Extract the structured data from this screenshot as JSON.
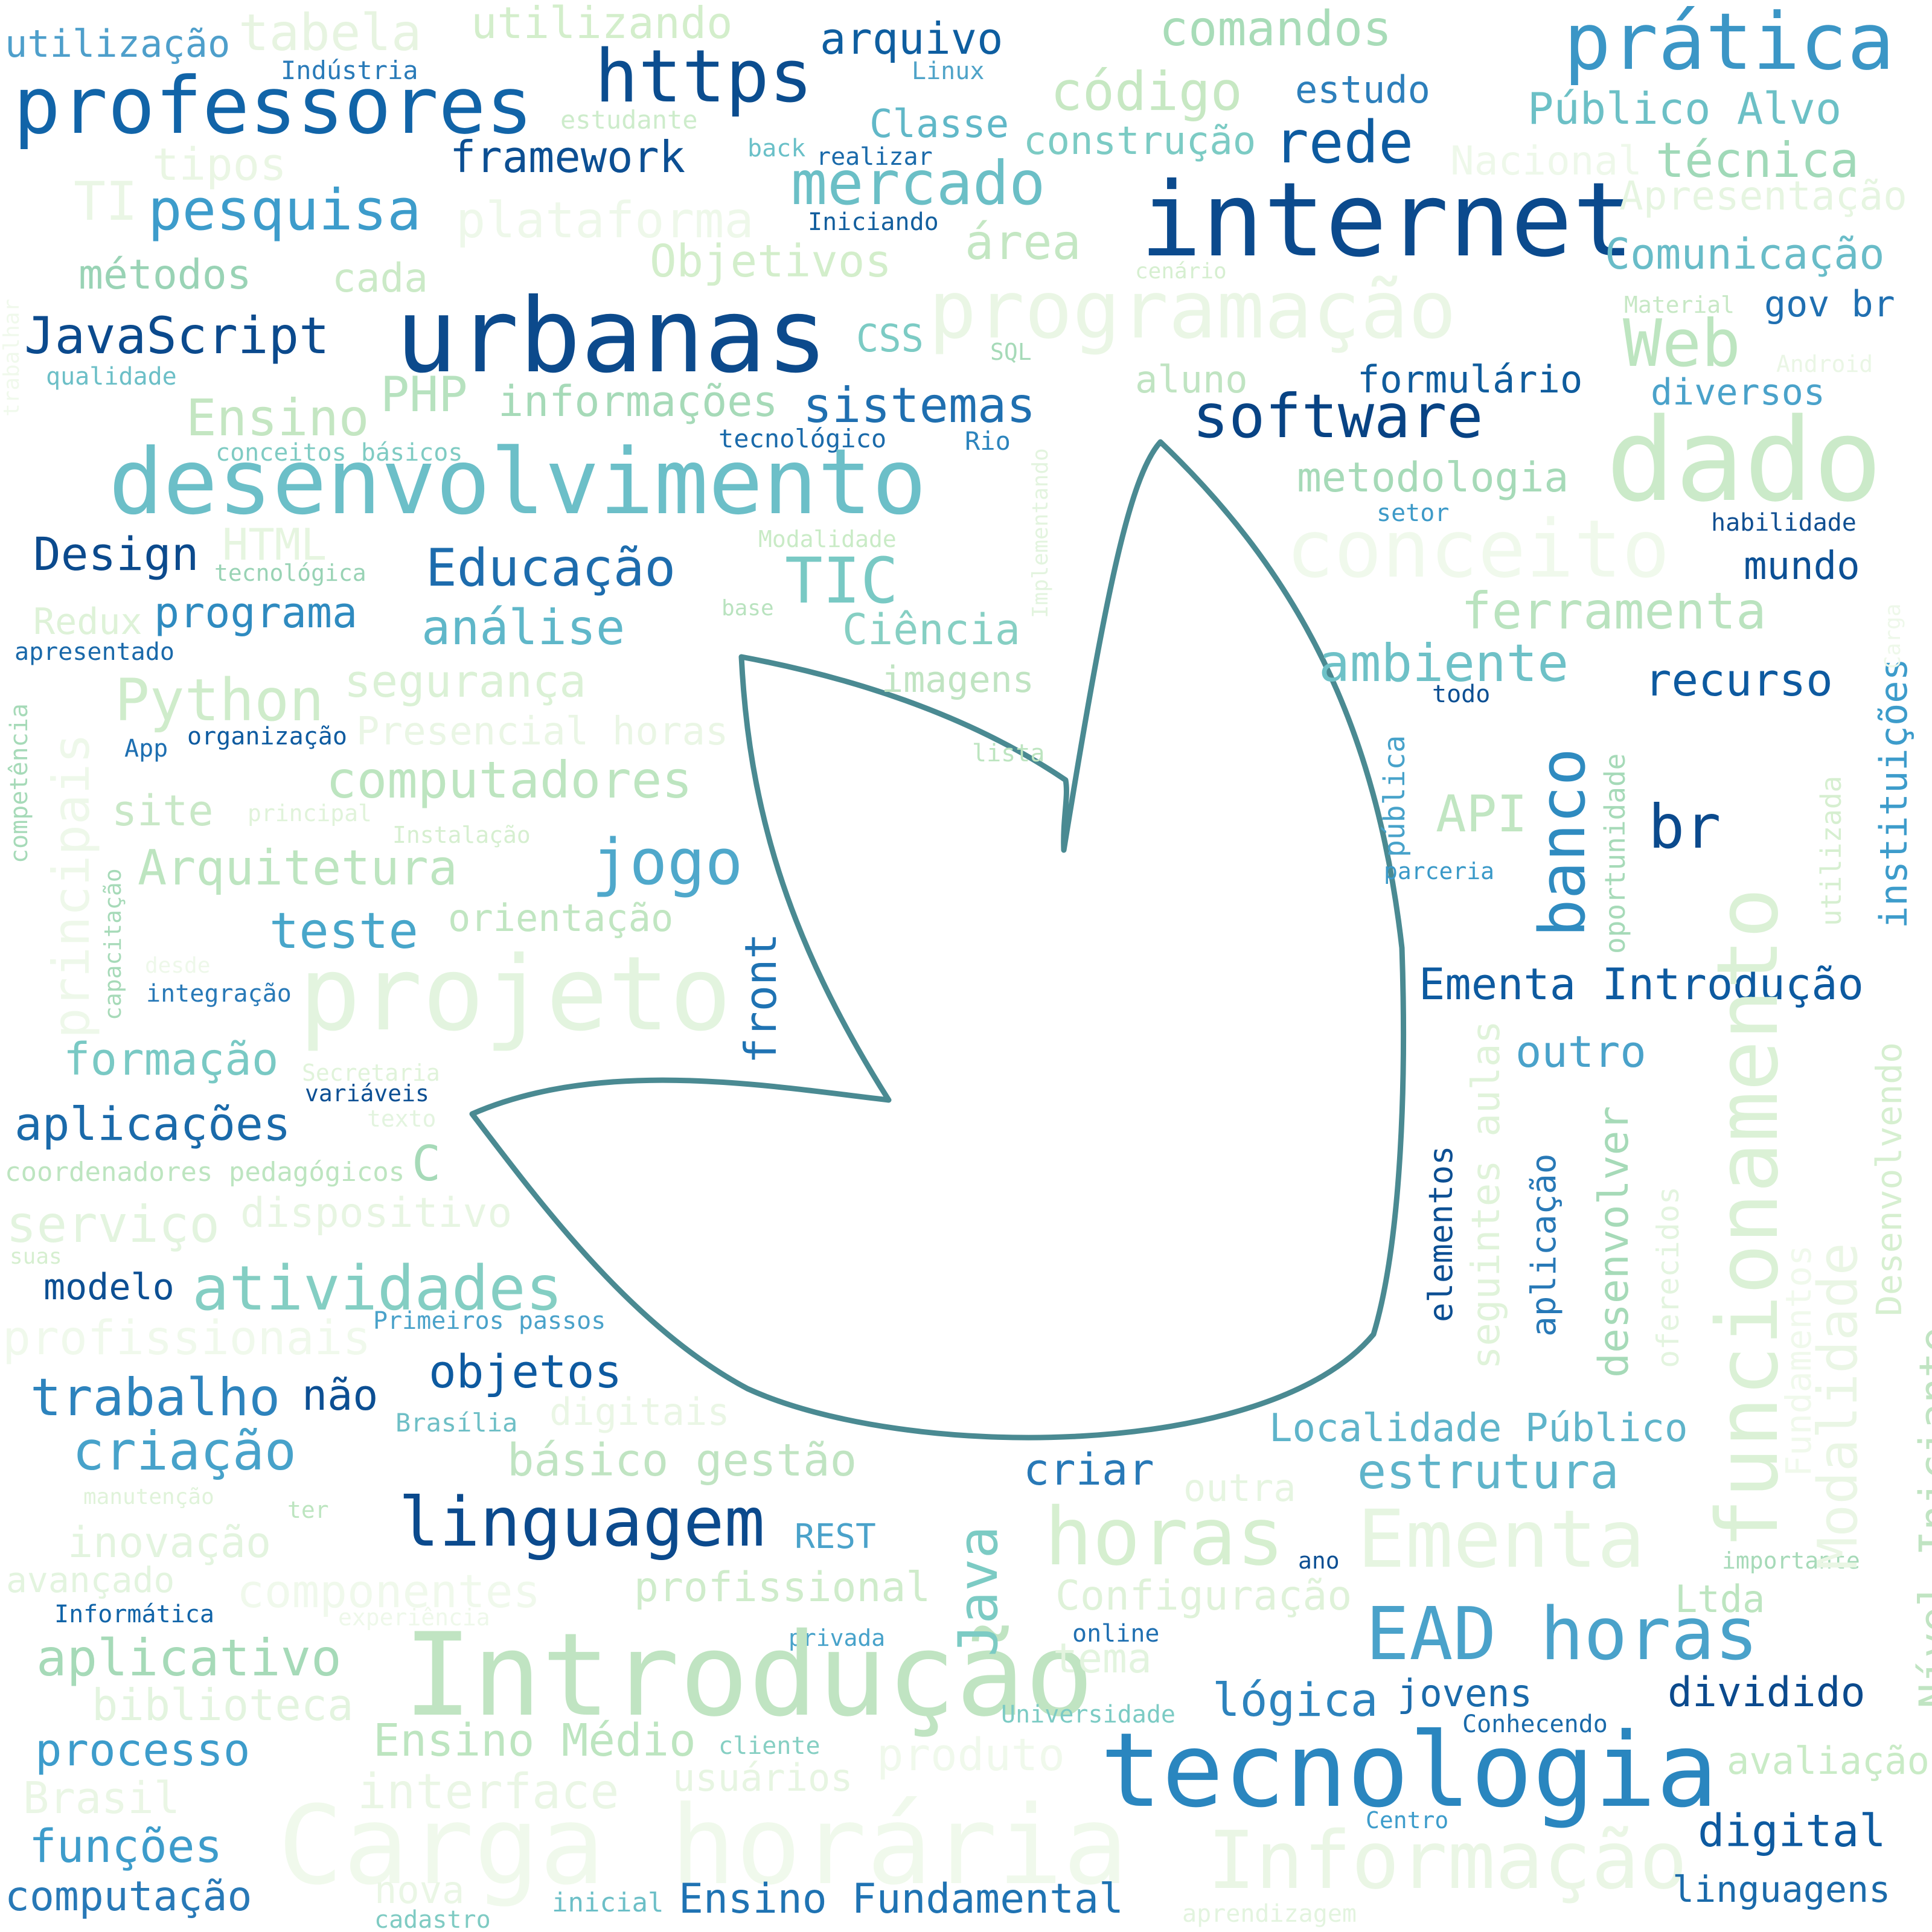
{
  "words": [
    "utilização",
    "tabela",
    "utilizando",
    "arquivo",
    "comandos",
    "prática",
    "Indústria",
    "Linux",
    "professores",
    "https",
    "código",
    "estudo",
    "Público Alvo",
    "estudante",
    "Classe",
    "back",
    "realizar",
    "construção",
    "rede",
    "framework",
    "tipos",
    "Nacional",
    "técnica",
    "mercado",
    "TI",
    "pesquisa",
    "internet",
    "Apresentação",
    "plataforma",
    "Iniciando",
    "Objetivos",
    "área",
    "métodos",
    "cada",
    "cenário",
    "Comunicação",
    "programação",
    "Material",
    "gov br",
    "JavaScript",
    "urbanas",
    "CSS",
    "Web",
    "SQL",
    "Android",
    "qualidade",
    "PHP",
    "informações",
    "sistemas",
    "aluno",
    "formulário",
    "diversos",
    "Ensino",
    "software",
    "conceitos básicos",
    "tecnológico",
    "Rio",
    "dado",
    "desenvolvimento",
    "metodologia",
    "setor",
    "HTML",
    "Modalidade",
    "conceito",
    "habilidade",
    "Design",
    "Educação",
    "TIC",
    "tecnológica",
    "mundo",
    "programa",
    "base",
    "ferramenta",
    "Redux",
    "análise",
    "Ciência",
    "apresentado",
    "ambiente",
    "imagens",
    "segurança",
    "todo",
    "recurso",
    "Python",
    "Presencial horas",
    "App",
    "organização",
    "lista",
    "computadores",
    "API",
    "site",
    "principal",
    "br",
    "jogo",
    "Instalação",
    "parceria",
    "Arquitetura",
    "orientação",
    "teste",
    "desde",
    "integração",
    "projeto",
    "Ementa Introdução",
    "formação",
    "Secretaria",
    "outro",
    "variáveis",
    "texto",
    "aplicações",
    "coordenadores pedagógicos",
    "C",
    "serviço",
    "dispositivo",
    "suas",
    "atividades",
    "modelo",
    "profissionais",
    "Primeiros passos",
    "objetos",
    "trabalho",
    "não",
    "digitais",
    "Brasília",
    "Localidade Público",
    "básico gestão",
    "criação",
    "criar",
    "outra",
    "estrutura",
    "manutenção",
    "ter",
    "linguagem",
    "REST",
    "inovação",
    "horas",
    "Ementa",
    "ano",
    "importante",
    "avançado",
    "componentes",
    "profissional",
    "Configuração",
    "Ltda",
    "Informática",
    "experiência",
    "privada",
    "online",
    "EAD horas",
    "aplicativo",
    "Introdução",
    "tema",
    "lógica",
    "jovens",
    "dividido",
    "biblioteca",
    "Universidade",
    "Conhecendo",
    "Ensino Médio",
    "cliente",
    "processo",
    "produto",
    "avaliação",
    "tecnologia",
    "interface",
    "usuários",
    "Brasil",
    "Centro",
    "digital",
    "funções",
    "Carga horária",
    "Informação",
    "nova",
    "computação",
    "inicial",
    "Ensino Fundamental",
    "linguagens",
    "cadastro",
    "aprendizagem",
    "trabalhar",
    "competência",
    "principais",
    "capacitação",
    "front",
    "Implementando",
    "Java",
    "banco",
    "pública",
    "oportunidade",
    "utilizada",
    "instituições",
    "Carga",
    "funcionamento",
    "Modalidade",
    "Desenvolvendo",
    "Fundamentos",
    "Nível Iniciante",
    "oferecidos",
    "seguintes aulas",
    "desenvolver",
    "aplicação",
    "elementos",
    "gratuito"
  ],
  "colors": {
    "background": "#ffffff",
    "leaf_stroke": "#4a8a92"
  },
  "icons": [
    "leaf-outline-icon"
  ]
}
